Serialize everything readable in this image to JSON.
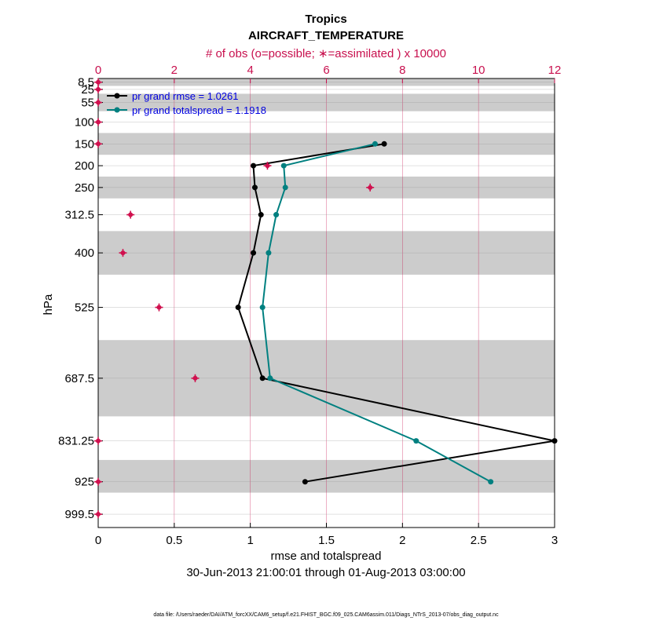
{
  "chart_data": {
    "type": "line",
    "title": "Tropics",
    "subtitle": "AIRCRAFT_TEMPERATURE",
    "top_axis_label": "# of obs (o=possible; ∗=assimilated ) x 10000",
    "xlabel": "rmse and totalspread",
    "ylabel": "hPa",
    "time_range": "30-Jun-2013 21:00:01 through 01-Aug-2013 03:00:00",
    "footer": "data file: /Users/raeder/DAI/ATM_forcXX/CAM6_setup/f.e21.FHIST_BGC.f09_025.CAM6assim.011/Diags_NTrS_2013-07/obs_diag_output.nc",
    "xlim": [
      0,
      3
    ],
    "xticks": [
      "0",
      "0.5",
      "1",
      "1.5",
      "2",
      "2.5",
      "3"
    ],
    "top_xlim": [
      0,
      12
    ],
    "top_xticks": [
      "0",
      "2",
      "4",
      "6",
      "8",
      "10",
      "12"
    ],
    "ylim": [
      1030,
      0
    ],
    "levels": [
      8.5,
      25,
      55,
      100,
      150,
      200,
      250,
      312.5,
      400,
      525,
      687.5,
      831.25,
      925,
      999.5
    ],
    "level_labels": [
      "8.5",
      "25",
      "55",
      "100",
      "150",
      "200",
      "250",
      "312.5",
      "400",
      "525",
      "687.5",
      "831.25",
      "925",
      "999.5"
    ],
    "layer_bands": [
      [
        0,
        17
      ],
      [
        35,
        75
      ],
      [
        125,
        175
      ],
      [
        225,
        275
      ],
      [
        350,
        450
      ],
      [
        600,
        775
      ],
      [
        875,
        950
      ]
    ],
    "legend": {
      "position": "top-left",
      "rmse": "pr grand rmse = 1.0261",
      "spread": "pr grand totalspread = 1.1918"
    },
    "series": [
      {
        "name": "pr grand rmse = 1.0261",
        "color": "#000000",
        "points": [
          [
            1.88,
            150
          ],
          [
            1.02,
            200
          ],
          [
            1.03,
            250
          ],
          [
            1.07,
            312.5
          ],
          [
            1.02,
            400
          ],
          [
            0.92,
            525
          ],
          [
            1.08,
            687.5
          ],
          [
            3.0,
            831.25
          ],
          [
            1.36,
            925
          ]
        ]
      },
      {
        "name": "pr grand totalspread = 1.1918",
        "color": "#008080",
        "points": [
          [
            1.82,
            150
          ],
          [
            1.22,
            200
          ],
          [
            1.23,
            250
          ],
          [
            1.17,
            312.5
          ],
          [
            1.12,
            400
          ],
          [
            1.08,
            525
          ],
          [
            1.13,
            687.5
          ],
          [
            2.09,
            831.25
          ],
          [
            2.58,
            925
          ]
        ]
      }
    ],
    "obs_counts": {
      "color": "#d0104e",
      "points": [
        [
          0.0,
          8.5
        ],
        [
          0.0,
          25
        ],
        [
          0.0,
          55
        ],
        [
          0.0,
          100
        ],
        [
          0.0,
          150
        ],
        [
          4.45,
          200
        ],
        [
          0.85,
          312.5
        ],
        [
          0.65,
          400
        ],
        [
          1.6,
          525
        ],
        [
          2.55,
          687.5
        ],
        [
          0.0,
          831.25
        ],
        [
          0.0,
          925
        ],
        [
          0.0,
          999.5
        ],
        [
          7.15,
          250
        ]
      ]
    }
  }
}
